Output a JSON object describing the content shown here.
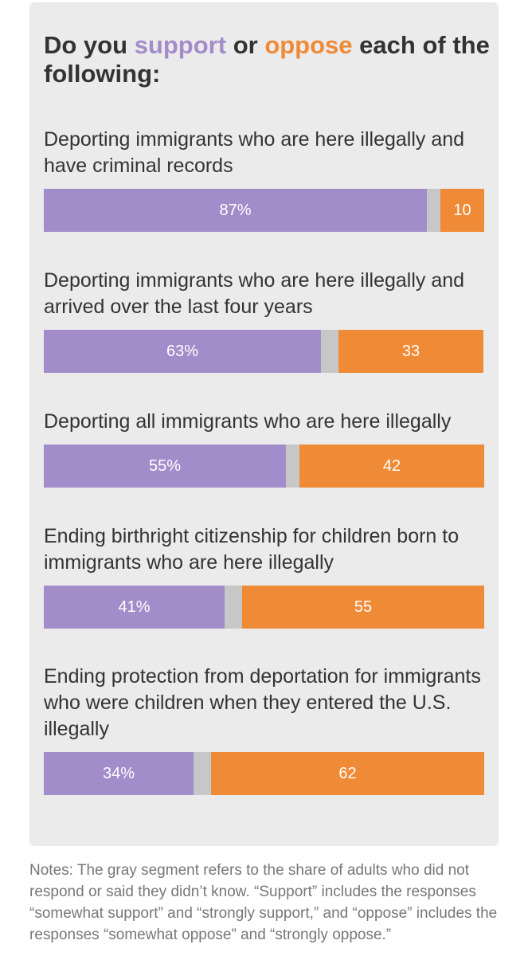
{
  "headline": {
    "prefix": "Do you",
    "support_word": "support",
    "middle": "or",
    "oppose_word": "oppose",
    "suffix": "each of the following:"
  },
  "colors": {
    "support": "#a38cca",
    "oppose": "#ef8a36",
    "unknown": "#c7c7c7"
  },
  "chart_data": {
    "type": "bar",
    "stacked": true,
    "orientation": "horizontal",
    "categories": [
      "Deporting immigrants who are here illegally and have criminal records",
      "Deporting immigrants who are here illegally and arrived over the last four years",
      "Deporting all immigrants who are here illegally",
      "Ending birthright citizenship for children born to immigrants who are here illegally",
      "Ending protection from deportation for immigrants who were children when they entered the U.S. illegally"
    ],
    "series": [
      {
        "name": "support",
        "values": [
          87,
          63,
          55,
          41,
          34
        ],
        "labels": [
          "87%",
          "63%",
          "55%",
          "41%",
          "34%"
        ]
      },
      {
        "values": [
          3,
          4,
          3,
          4,
          4
        ]
      },
      {
        "name": "oppose",
        "values": [
          10,
          33,
          42,
          55,
          62
        ],
        "labels": [
          "10",
          "33",
          "42",
          "55",
          "62"
        ]
      }
    ],
    "xlim": [
      0,
      100
    ]
  },
  "notes": "Notes: The gray segment refers to the share of adults who did not respond or said they didn’t know. “Support” includes the responses “somewhat support” and “strongly support,” and “oppose” includes the responses “somewhat oppose” and “strongly oppose.”"
}
